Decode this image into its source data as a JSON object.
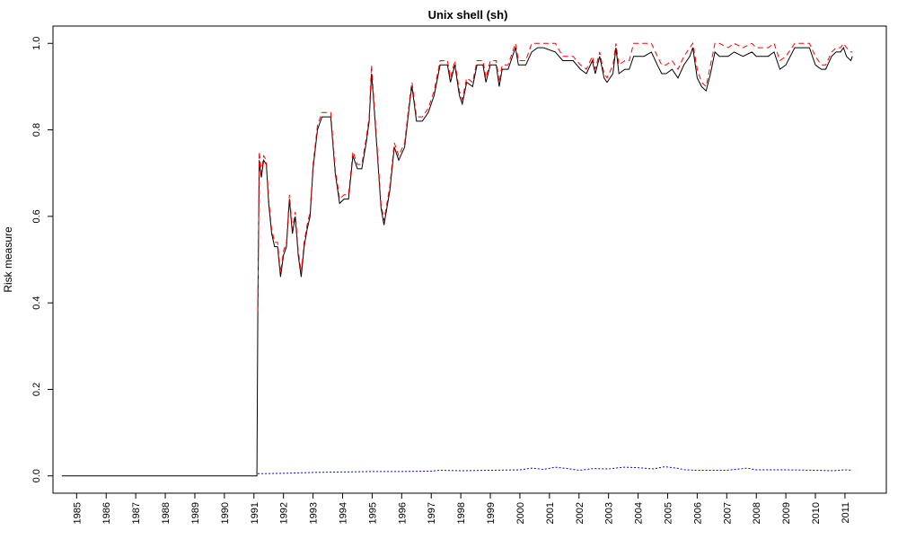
{
  "chart_data": {
    "type": "line",
    "title": "Unix shell (sh)",
    "xlabel": "",
    "ylabel": "Risk measure",
    "xlim": [
      1984.2,
      2012.4
    ],
    "ylim": [
      -0.04,
      1.04
    ],
    "x_ticks": [
      "1985",
      "1986",
      "1987",
      "1988",
      "1989",
      "1990",
      "1991",
      "1992",
      "1993",
      "1994",
      "1995",
      "1996",
      "1997",
      "1998",
      "1999",
      "2000",
      "2001",
      "2002",
      "2003",
      "2004",
      "2005",
      "2006",
      "2007",
      "2008",
      "2009",
      "2010",
      "2011"
    ],
    "y_ticks": [
      "0.0",
      "0.2",
      "0.4",
      "0.6",
      "0.8",
      "1.0"
    ],
    "grid": false,
    "series": [
      {
        "color": "#000000",
        "style": "solid",
        "points": [
          [
            1984.5,
            0.0
          ],
          [
            1991.1,
            0.0
          ],
          [
            1991.13,
            0.38
          ],
          [
            1991.18,
            0.73
          ],
          [
            1991.25,
            0.69
          ],
          [
            1991.33,
            0.73
          ],
          [
            1991.42,
            0.72
          ],
          [
            1991.5,
            0.63
          ],
          [
            1991.6,
            0.56
          ],
          [
            1991.7,
            0.53
          ],
          [
            1991.8,
            0.53
          ],
          [
            1991.9,
            0.46
          ],
          [
            1992.0,
            0.51
          ],
          [
            1992.1,
            0.53
          ],
          [
            1992.2,
            0.64
          ],
          [
            1992.3,
            0.56
          ],
          [
            1992.4,
            0.6
          ],
          [
            1992.5,
            0.51
          ],
          [
            1992.6,
            0.46
          ],
          [
            1992.7,
            0.53
          ],
          [
            1992.8,
            0.57
          ],
          [
            1992.9,
            0.6
          ],
          [
            1993.0,
            0.71
          ],
          [
            1993.15,
            0.8
          ],
          [
            1993.3,
            0.83
          ],
          [
            1993.45,
            0.83
          ],
          [
            1993.6,
            0.83
          ],
          [
            1993.75,
            0.7
          ],
          [
            1993.9,
            0.63
          ],
          [
            1994.05,
            0.64
          ],
          [
            1994.2,
            0.64
          ],
          [
            1994.35,
            0.74
          ],
          [
            1994.5,
            0.71
          ],
          [
            1994.65,
            0.71
          ],
          [
            1994.8,
            0.77
          ],
          [
            1994.9,
            0.82
          ],
          [
            1994.98,
            0.93
          ],
          [
            1995.05,
            0.87
          ],
          [
            1995.2,
            0.72
          ],
          [
            1995.3,
            0.62
          ],
          [
            1995.4,
            0.58
          ],
          [
            1995.5,
            0.62
          ],
          [
            1995.6,
            0.66
          ],
          [
            1995.75,
            0.76
          ],
          [
            1995.9,
            0.73
          ],
          [
            1996.1,
            0.76
          ],
          [
            1996.3,
            0.88
          ],
          [
            1996.35,
            0.9
          ],
          [
            1996.5,
            0.82
          ],
          [
            1996.7,
            0.82
          ],
          [
            1996.9,
            0.84
          ],
          [
            1997.1,
            0.88
          ],
          [
            1997.3,
            0.95
          ],
          [
            1997.55,
            0.95
          ],
          [
            1997.65,
            0.91
          ],
          [
            1997.8,
            0.95
          ],
          [
            1997.95,
            0.88
          ],
          [
            1998.05,
            0.86
          ],
          [
            1998.2,
            0.91
          ],
          [
            1998.4,
            0.9
          ],
          [
            1998.55,
            0.95
          ],
          [
            1998.75,
            0.95
          ],
          [
            1998.85,
            0.91
          ],
          [
            1999.0,
            0.95
          ],
          [
            1999.2,
            0.95
          ],
          [
            1999.3,
            0.9
          ],
          [
            1999.4,
            0.94
          ],
          [
            1999.6,
            0.94
          ],
          [
            1999.75,
            0.97
          ],
          [
            1999.85,
            0.99
          ],
          [
            1999.95,
            0.95
          ],
          [
            2000.2,
            0.95
          ],
          [
            2000.4,
            0.98
          ],
          [
            2000.6,
            0.99
          ],
          [
            2000.8,
            0.99
          ],
          [
            2001.2,
            0.98
          ],
          [
            2001.45,
            0.96
          ],
          [
            2001.8,
            0.96
          ],
          [
            2002.05,
            0.94
          ],
          [
            2002.25,
            0.93
          ],
          [
            2002.45,
            0.96
          ],
          [
            2002.55,
            0.93
          ],
          [
            2002.7,
            0.97
          ],
          [
            2002.85,
            0.92
          ],
          [
            2002.95,
            0.91
          ],
          [
            2003.15,
            0.93
          ],
          [
            2003.25,
            0.99
          ],
          [
            2003.35,
            0.93
          ],
          [
            2003.55,
            0.94
          ],
          [
            2003.7,
            0.94
          ],
          [
            2003.85,
            0.97
          ],
          [
            2004.2,
            0.97
          ],
          [
            2004.45,
            0.98
          ],
          [
            2004.65,
            0.95
          ],
          [
            2004.8,
            0.93
          ],
          [
            2004.95,
            0.93
          ],
          [
            2005.15,
            0.94
          ],
          [
            2005.35,
            0.92
          ],
          [
            2005.55,
            0.95
          ],
          [
            2005.75,
            0.97
          ],
          [
            2005.85,
            0.99
          ],
          [
            2006.0,
            0.92
          ],
          [
            2006.15,
            0.9
          ],
          [
            2006.3,
            0.89
          ],
          [
            2006.45,
            0.93
          ],
          [
            2006.6,
            0.98
          ],
          [
            2006.75,
            0.97
          ],
          [
            2007.05,
            0.97
          ],
          [
            2007.25,
            0.98
          ],
          [
            2007.55,
            0.97
          ],
          [
            2007.85,
            0.98
          ],
          [
            2008.0,
            0.97
          ],
          [
            2008.4,
            0.97
          ],
          [
            2008.6,
            0.98
          ],
          [
            2008.8,
            0.94
          ],
          [
            2009.0,
            0.95
          ],
          [
            2009.3,
            0.99
          ],
          [
            2009.6,
            0.99
          ],
          [
            2009.8,
            0.99
          ],
          [
            2010.0,
            0.95
          ],
          [
            2010.2,
            0.94
          ],
          [
            2010.35,
            0.94
          ],
          [
            2010.55,
            0.97
          ],
          [
            2010.7,
            0.98
          ],
          [
            2010.85,
            0.98
          ],
          [
            2010.95,
            0.99
          ],
          [
            2011.05,
            0.97
          ],
          [
            2011.2,
            0.96
          ],
          [
            2011.25,
            0.97
          ]
        ]
      },
      {
        "color": "#ff0000",
        "style": "dashed",
        "points": [
          [
            1991.13,
            0.38
          ],
          [
            1991.18,
            0.75
          ],
          [
            1991.25,
            0.7
          ],
          [
            1991.33,
            0.74
          ],
          [
            1991.42,
            0.73
          ],
          [
            1991.5,
            0.64
          ],
          [
            1991.6,
            0.57
          ],
          [
            1991.7,
            0.54
          ],
          [
            1991.8,
            0.54
          ],
          [
            1991.9,
            0.47
          ],
          [
            1992.0,
            0.52
          ],
          [
            1992.1,
            0.54
          ],
          [
            1992.2,
            0.65
          ],
          [
            1992.3,
            0.57
          ],
          [
            1992.4,
            0.61
          ],
          [
            1992.5,
            0.52
          ],
          [
            1992.6,
            0.47
          ],
          [
            1992.7,
            0.54
          ],
          [
            1992.8,
            0.58
          ],
          [
            1992.9,
            0.61
          ],
          [
            1993.0,
            0.72
          ],
          [
            1993.15,
            0.81
          ],
          [
            1993.3,
            0.84
          ],
          [
            1993.45,
            0.84
          ],
          [
            1993.6,
            0.84
          ],
          [
            1993.75,
            0.71
          ],
          [
            1993.9,
            0.64
          ],
          [
            1994.05,
            0.65
          ],
          [
            1994.2,
            0.65
          ],
          [
            1994.35,
            0.75
          ],
          [
            1994.5,
            0.72
          ],
          [
            1994.65,
            0.72
          ],
          [
            1994.8,
            0.78
          ],
          [
            1994.9,
            0.83
          ],
          [
            1994.98,
            0.95
          ],
          [
            1995.05,
            0.88
          ],
          [
            1995.2,
            0.73
          ],
          [
            1995.3,
            0.63
          ],
          [
            1995.4,
            0.59
          ],
          [
            1995.5,
            0.63
          ],
          [
            1995.6,
            0.67
          ],
          [
            1995.75,
            0.77
          ],
          [
            1995.9,
            0.74
          ],
          [
            1996.1,
            0.77
          ],
          [
            1996.3,
            0.89
          ],
          [
            1996.35,
            0.91
          ],
          [
            1996.5,
            0.83
          ],
          [
            1996.7,
            0.83
          ],
          [
            1996.9,
            0.85
          ],
          [
            1997.1,
            0.89
          ],
          [
            1997.3,
            0.96
          ],
          [
            1997.55,
            0.96
          ],
          [
            1997.65,
            0.92
          ],
          [
            1997.8,
            0.96
          ],
          [
            1997.95,
            0.89
          ],
          [
            1998.05,
            0.87
          ],
          [
            1998.2,
            0.92
          ],
          [
            1998.4,
            0.91
          ],
          [
            1998.55,
            0.96
          ],
          [
            1998.75,
            0.96
          ],
          [
            1998.85,
            0.92
          ],
          [
            1999.0,
            0.96
          ],
          [
            1999.2,
            0.96
          ],
          [
            1999.3,
            0.91
          ],
          [
            1999.4,
            0.95
          ],
          [
            1999.6,
            0.95
          ],
          [
            1999.75,
            0.98
          ],
          [
            1999.85,
            1.0
          ],
          [
            1999.95,
            0.96
          ],
          [
            2000.2,
            0.96
          ],
          [
            2000.4,
            1.0
          ],
          [
            2000.6,
            1.0
          ],
          [
            2000.8,
            1.0
          ],
          [
            2001.2,
            1.0
          ],
          [
            2001.45,
            0.97
          ],
          [
            2001.8,
            0.97
          ],
          [
            2002.05,
            0.95
          ],
          [
            2002.25,
            0.94
          ],
          [
            2002.45,
            0.97
          ],
          [
            2002.55,
            0.94
          ],
          [
            2002.7,
            0.98
          ],
          [
            2002.85,
            0.93
          ],
          [
            2002.95,
            0.92
          ],
          [
            2003.15,
            0.95
          ],
          [
            2003.25,
            1.0
          ],
          [
            2003.35,
            0.95
          ],
          [
            2003.55,
            0.96
          ],
          [
            2003.7,
            0.96
          ],
          [
            2003.85,
            1.0
          ],
          [
            2004.2,
            1.0
          ],
          [
            2004.45,
            1.0
          ],
          [
            2004.65,
            0.97
          ],
          [
            2004.8,
            0.95
          ],
          [
            2004.95,
            0.95
          ],
          [
            2005.15,
            0.96
          ],
          [
            2005.35,
            0.94
          ],
          [
            2005.55,
            0.97
          ],
          [
            2005.75,
            0.99
          ],
          [
            2005.85,
            1.0
          ],
          [
            2006.0,
            0.94
          ],
          [
            2006.15,
            0.91
          ],
          [
            2006.3,
            0.9
          ],
          [
            2006.45,
            0.95
          ],
          [
            2006.6,
            1.0
          ],
          [
            2006.75,
            1.0
          ],
          [
            2007.05,
            0.99
          ],
          [
            2007.25,
            1.0
          ],
          [
            2007.55,
            0.99
          ],
          [
            2007.85,
            1.0
          ],
          [
            2008.0,
            0.99
          ],
          [
            2008.4,
            0.99
          ],
          [
            2008.6,
            1.0
          ],
          [
            2008.8,
            0.96
          ],
          [
            2009.0,
            0.97
          ],
          [
            2009.3,
            1.0
          ],
          [
            2009.6,
            1.0
          ],
          [
            2009.8,
            1.0
          ],
          [
            2010.0,
            0.97
          ],
          [
            2010.2,
            0.95
          ],
          [
            2010.35,
            0.95
          ],
          [
            2010.55,
            0.98
          ],
          [
            2010.7,
            0.99
          ],
          [
            2010.85,
            0.99
          ],
          [
            2010.95,
            1.0
          ],
          [
            2011.05,
            0.99
          ],
          [
            2011.2,
            0.98
          ],
          [
            2011.25,
            0.98
          ]
        ]
      },
      {
        "color": "#0000ff",
        "style": "dotted",
        "points": [
          [
            1991.13,
            0.005
          ],
          [
            1992.0,
            0.006
          ],
          [
            1993.0,
            0.008
          ],
          [
            1994.0,
            0.009
          ],
          [
            1995.0,
            0.01
          ],
          [
            1996.0,
            0.01
          ],
          [
            1997.0,
            0.011
          ],
          [
            1997.3,
            0.013
          ],
          [
            1998.0,
            0.012
          ],
          [
            1999.0,
            0.013
          ],
          [
            2000.0,
            0.014
          ],
          [
            2000.4,
            0.018
          ],
          [
            2000.8,
            0.015
          ],
          [
            2001.2,
            0.02
          ],
          [
            2001.6,
            0.017
          ],
          [
            2002.0,
            0.013
          ],
          [
            2002.5,
            0.017
          ],
          [
            2003.0,
            0.016
          ],
          [
            2003.5,
            0.02
          ],
          [
            2004.0,
            0.019
          ],
          [
            2004.5,
            0.016
          ],
          [
            2004.9,
            0.021
          ],
          [
            2005.3,
            0.018
          ],
          [
            2005.6,
            0.014
          ],
          [
            2006.0,
            0.013
          ],
          [
            2007.0,
            0.013
          ],
          [
            2007.7,
            0.018
          ],
          [
            2008.0,
            0.014
          ],
          [
            2009.0,
            0.014
          ],
          [
            2010.0,
            0.013
          ],
          [
            2010.6,
            0.012
          ],
          [
            2011.0,
            0.014
          ],
          [
            2011.25,
            0.013
          ]
        ]
      }
    ]
  }
}
